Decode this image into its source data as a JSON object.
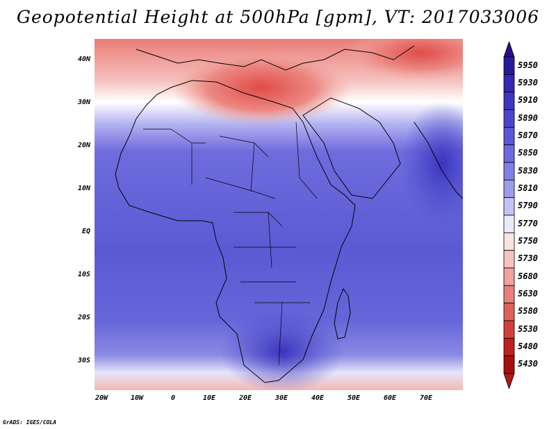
{
  "title": "Geopotential Height at 500hPa [gpm], VT: 2017033006",
  "footer": "GrADS: IGES/COLA",
  "lat_labels": [
    "40N",
    "30N",
    "20N",
    "10N",
    "EQ",
    "10S",
    "20S",
    "30S"
  ],
  "lon_labels": [
    "20W",
    "10W",
    "0",
    "10E",
    "20E",
    "30E",
    "40E",
    "50E",
    "60E",
    "70E"
  ],
  "colorbar": {
    "levels": [
      "5950",
      "5930",
      "5910",
      "5890",
      "5870",
      "5850",
      "5830",
      "5810",
      "5790",
      "5770",
      "5750",
      "5730",
      "5680",
      "5630",
      "5580",
      "5530",
      "5480",
      "5430"
    ],
    "colors": [
      "#2a1a9e",
      "#3528b3",
      "#3e36c0",
      "#4a46cb",
      "#5a58d5",
      "#6c6ade",
      "#8180e6",
      "#9c9ced",
      "#c3c3f5",
      "#ecebfb",
      "#fbe3e1",
      "#f6c3c0",
      "#efa29f",
      "#e7807d",
      "#df5f5c",
      "#d33f3c",
      "#bf2020",
      "#a80f0f"
    ],
    "top_color": "#2a0f8c",
    "bottom_color": "#b01818"
  }
}
